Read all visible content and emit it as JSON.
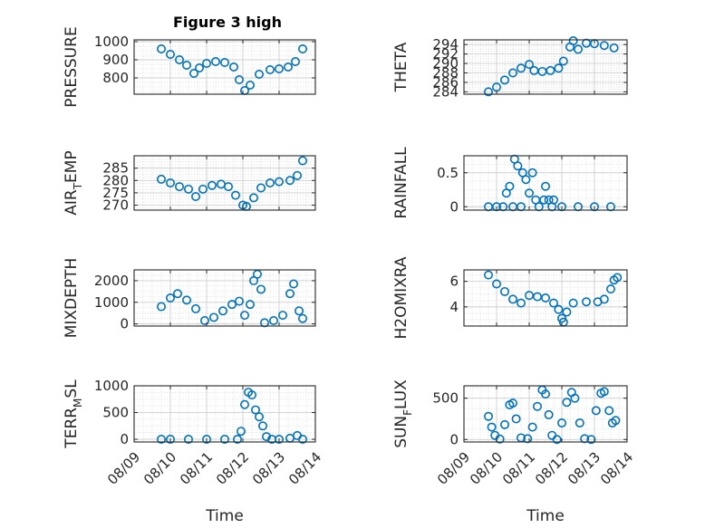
{
  "figure": {
    "title": "Figure 3 high"
  },
  "colors": {
    "marker": "#0072BD",
    "axis": "#262626",
    "grid": "#d9d9d9",
    "background": "#ffffff"
  },
  "chart_data": [
    {
      "type": "scatter",
      "panel": "pressure",
      "title": "Figure 3 high",
      "ylabel": "PRESSURE",
      "ylabel_sub": "",
      "ylabel_rest": "",
      "xlabel": "",
      "xlim": [
        "08/09",
        "08/14"
      ],
      "ylim": [
        710,
        1010
      ],
      "yticks": [
        800,
        900,
        1000
      ],
      "grid": true,
      "minor_grid": true,
      "xticks": [
        "08/09",
        "08/10",
        "08/11",
        "08/12",
        "08/13",
        "08/14"
      ],
      "marker": "circle",
      "points": [
        {
          "x": 9.75,
          "y": 960
        },
        {
          "x": 10.0,
          "y": 930
        },
        {
          "x": 10.25,
          "y": 900
        },
        {
          "x": 10.45,
          "y": 870
        },
        {
          "x": 10.65,
          "y": 825
        },
        {
          "x": 10.8,
          "y": 855
        },
        {
          "x": 11.0,
          "y": 880
        },
        {
          "x": 11.25,
          "y": 890
        },
        {
          "x": 11.5,
          "y": 885
        },
        {
          "x": 11.75,
          "y": 860
        },
        {
          "x": 11.9,
          "y": 790
        },
        {
          "x": 12.05,
          "y": 730
        },
        {
          "x": 12.2,
          "y": 760
        },
        {
          "x": 12.45,
          "y": 820
        },
        {
          "x": 12.75,
          "y": 845
        },
        {
          "x": 13.0,
          "y": 850
        },
        {
          "x": 13.25,
          "y": 860
        },
        {
          "x": 13.45,
          "y": 890
        },
        {
          "x": 13.65,
          "y": 960
        }
      ]
    },
    {
      "type": "scatter",
      "panel": "theta",
      "title": "",
      "ylabel": "THETA",
      "ylabel_sub": "",
      "ylabel_rest": "",
      "xlabel": "",
      "xlim": [
        "08/09",
        "08/14"
      ],
      "ylim": [
        283.5,
        295
      ],
      "yticks": [
        284,
        286,
        288,
        290,
        292,
        294
      ],
      "grid": true,
      "minor_grid": true,
      "xticks": [
        "08/09",
        "08/10",
        "08/11",
        "08/12",
        "08/13",
        "08/14"
      ],
      "marker": "circle",
      "points": [
        {
          "x": 9.75,
          "y": 284
        },
        {
          "x": 10.0,
          "y": 285
        },
        {
          "x": 10.25,
          "y": 286.5
        },
        {
          "x": 10.5,
          "y": 288
        },
        {
          "x": 10.75,
          "y": 289
        },
        {
          "x": 11.0,
          "y": 289.8
        },
        {
          "x": 11.15,
          "y": 288.5
        },
        {
          "x": 11.4,
          "y": 288.3
        },
        {
          "x": 11.65,
          "y": 288.5
        },
        {
          "x": 11.9,
          "y": 289
        },
        {
          "x": 12.05,
          "y": 290.5
        },
        {
          "x": 12.25,
          "y": 293.5
        },
        {
          "x": 12.35,
          "y": 294.8
        },
        {
          "x": 12.5,
          "y": 293
        },
        {
          "x": 12.75,
          "y": 294.3
        },
        {
          "x": 13.0,
          "y": 294.2
        },
        {
          "x": 13.3,
          "y": 293.8
        },
        {
          "x": 13.6,
          "y": 293.3
        }
      ]
    },
    {
      "type": "scatter",
      "panel": "air_temp",
      "title": "",
      "ylabel": "AIR",
      "ylabel_sub": "T",
      "ylabel_rest": "EMP",
      "xlabel": "",
      "xlim": [
        "08/09",
        "08/14"
      ],
      "ylim": [
        268,
        290
      ],
      "yticks": [
        270,
        275,
        280,
        285
      ],
      "grid": true,
      "minor_grid": true,
      "xticks": [
        "08/09",
        "08/10",
        "08/11",
        "08/12",
        "08/13",
        "08/14"
      ],
      "marker": "circle",
      "points": [
        {
          "x": 9.75,
          "y": 280.5
        },
        {
          "x": 10.0,
          "y": 279
        },
        {
          "x": 10.25,
          "y": 277.5
        },
        {
          "x": 10.5,
          "y": 276.5
        },
        {
          "x": 10.7,
          "y": 273.5
        },
        {
          "x": 10.9,
          "y": 276.5
        },
        {
          "x": 11.15,
          "y": 278
        },
        {
          "x": 11.4,
          "y": 278.5
        },
        {
          "x": 11.6,
          "y": 277.5
        },
        {
          "x": 11.8,
          "y": 274
        },
        {
          "x": 12.0,
          "y": 270
        },
        {
          "x": 12.1,
          "y": 269.5
        },
        {
          "x": 12.3,
          "y": 273
        },
        {
          "x": 12.5,
          "y": 277
        },
        {
          "x": 12.75,
          "y": 279
        },
        {
          "x": 13.0,
          "y": 279.5
        },
        {
          "x": 13.3,
          "y": 280
        },
        {
          "x": 13.5,
          "y": 282
        },
        {
          "x": 13.65,
          "y": 288
        }
      ]
    },
    {
      "type": "scatter",
      "panel": "rainfall",
      "title": "",
      "ylabel": "RAINFALL",
      "ylabel_sub": "",
      "ylabel_rest": "",
      "xlabel": "",
      "xlim": [
        "08/09",
        "08/14"
      ],
      "ylim": [
        -0.05,
        0.75
      ],
      "yticks": [
        0,
        0.5
      ],
      "grid": true,
      "minor_grid": true,
      "xticks": [
        "08/09",
        "08/10",
        "08/11",
        "08/12",
        "08/13",
        "08/14"
      ],
      "marker": "circle",
      "points": [
        {
          "x": 9.75,
          "y": 0
        },
        {
          "x": 10.0,
          "y": 0
        },
        {
          "x": 10.2,
          "y": 0
        },
        {
          "x": 10.3,
          "y": 0.2
        },
        {
          "x": 10.4,
          "y": 0.3
        },
        {
          "x": 10.5,
          "y": 0
        },
        {
          "x": 10.55,
          "y": 0.7
        },
        {
          "x": 10.65,
          "y": 0.6
        },
        {
          "x": 10.75,
          "y": 0
        },
        {
          "x": 10.8,
          "y": 0.5
        },
        {
          "x": 10.9,
          "y": 0.4
        },
        {
          "x": 11.0,
          "y": 0.2
        },
        {
          "x": 11.1,
          "y": 0.5
        },
        {
          "x": 11.2,
          "y": 0.1
        },
        {
          "x": 11.3,
          "y": 0
        },
        {
          "x": 11.45,
          "y": 0.1
        },
        {
          "x": 11.5,
          "y": 0.3
        },
        {
          "x": 11.6,
          "y": 0.1
        },
        {
          "x": 11.7,
          "y": 0
        },
        {
          "x": 11.75,
          "y": 0.1
        },
        {
          "x": 12.0,
          "y": 0
        },
        {
          "x": 12.5,
          "y": 0
        },
        {
          "x": 13.0,
          "y": 0
        },
        {
          "x": 13.5,
          "y": 0
        }
      ]
    },
    {
      "type": "scatter",
      "panel": "mixdepth",
      "title": "",
      "ylabel": "MIXDEPTH",
      "ylabel_sub": "",
      "ylabel_rest": "",
      "xlabel": "",
      "xlim": [
        "08/09",
        "08/14"
      ],
      "ylim": [
        -100,
        2500
      ],
      "yticks": [
        0,
        1000,
        2000
      ],
      "grid": true,
      "minor_grid": true,
      "xticks": [
        "08/09",
        "08/10",
        "08/11",
        "08/12",
        "08/13",
        "08/14"
      ],
      "marker": "circle",
      "points": [
        {
          "x": 9.75,
          "y": 800
        },
        {
          "x": 10.0,
          "y": 1200
        },
        {
          "x": 10.2,
          "y": 1400
        },
        {
          "x": 10.45,
          "y": 1100
        },
        {
          "x": 10.7,
          "y": 700
        },
        {
          "x": 10.95,
          "y": 150
        },
        {
          "x": 11.2,
          "y": 300
        },
        {
          "x": 11.45,
          "y": 600
        },
        {
          "x": 11.7,
          "y": 900
        },
        {
          "x": 11.9,
          "y": 1050
        },
        {
          "x": 12.05,
          "y": 400
        },
        {
          "x": 12.2,
          "y": 900
        },
        {
          "x": 12.3,
          "y": 2000
        },
        {
          "x": 12.4,
          "y": 2300
        },
        {
          "x": 12.5,
          "y": 1600
        },
        {
          "x": 12.6,
          "y": 50
        },
        {
          "x": 12.85,
          "y": 150
        },
        {
          "x": 13.1,
          "y": 400
        },
        {
          "x": 13.3,
          "y": 1400
        },
        {
          "x": 13.4,
          "y": 1850
        },
        {
          "x": 13.55,
          "y": 600
        },
        {
          "x": 13.65,
          "y": 250
        }
      ]
    },
    {
      "type": "scatter",
      "panel": "h2omixra",
      "title": "",
      "ylabel": "H2OMIXRA",
      "ylabel_sub": "",
      "ylabel_rest": "",
      "xlabel": "",
      "xlim": [
        "08/09",
        "08/14"
      ],
      "ylim": [
        2.5,
        6.9
      ],
      "yticks": [
        4,
        6
      ],
      "grid": true,
      "minor_grid": true,
      "xticks": [
        "08/09",
        "08/10",
        "08/11",
        "08/12",
        "08/13",
        "08/14"
      ],
      "marker": "circle",
      "points": [
        {
          "x": 9.75,
          "y": 6.5
        },
        {
          "x": 10.0,
          "y": 5.8
        },
        {
          "x": 10.25,
          "y": 5.2
        },
        {
          "x": 10.5,
          "y": 4.6
        },
        {
          "x": 10.75,
          "y": 4.3
        },
        {
          "x": 11.0,
          "y": 4.9
        },
        {
          "x": 11.25,
          "y": 4.8
        },
        {
          "x": 11.5,
          "y": 4.7
        },
        {
          "x": 11.75,
          "y": 4.3
        },
        {
          "x": 11.9,
          "y": 3.8
        },
        {
          "x": 12.0,
          "y": 3.1
        },
        {
          "x": 12.05,
          "y": 2.8
        },
        {
          "x": 12.15,
          "y": 3.6
        },
        {
          "x": 12.35,
          "y": 4.3
        },
        {
          "x": 12.75,
          "y": 4.4
        },
        {
          "x": 13.1,
          "y": 4.4
        },
        {
          "x": 13.3,
          "y": 4.6
        },
        {
          "x": 13.5,
          "y": 5.4
        },
        {
          "x": 13.6,
          "y": 6.1
        },
        {
          "x": 13.7,
          "y": 6.3
        }
      ]
    },
    {
      "type": "scatter",
      "panel": "terr_msl",
      "title": "",
      "ylabel": "TERR",
      "ylabel_sub": "M",
      "ylabel_rest": "SL",
      "xlabel": "Time",
      "xlim": [
        "08/09",
        "08/14"
      ],
      "ylim": [
        -50,
        1000
      ],
      "yticks": [
        0,
        500,
        1000
      ],
      "grid": true,
      "minor_grid": true,
      "xticks": [
        "08/09",
        "08/10",
        "08/11",
        "08/12",
        "08/13",
        "08/14"
      ],
      "marker": "circle",
      "points": [
        {
          "x": 9.75,
          "y": 0
        },
        {
          "x": 10.0,
          "y": 0
        },
        {
          "x": 10.5,
          "y": 0
        },
        {
          "x": 11.0,
          "y": 0
        },
        {
          "x": 11.5,
          "y": 0
        },
        {
          "x": 11.85,
          "y": 0
        },
        {
          "x": 11.95,
          "y": 150
        },
        {
          "x": 12.05,
          "y": 650
        },
        {
          "x": 12.15,
          "y": 880
        },
        {
          "x": 12.25,
          "y": 830
        },
        {
          "x": 12.35,
          "y": 550
        },
        {
          "x": 12.45,
          "y": 420
        },
        {
          "x": 12.55,
          "y": 250
        },
        {
          "x": 12.65,
          "y": 50
        },
        {
          "x": 12.8,
          "y": 0
        },
        {
          "x": 13.0,
          "y": 0
        },
        {
          "x": 13.3,
          "y": 20
        },
        {
          "x": 13.5,
          "y": 70
        },
        {
          "x": 13.65,
          "y": 0
        }
      ]
    },
    {
      "type": "scatter",
      "panel": "sun_flux",
      "title": "",
      "ylabel": "SUN",
      "ylabel_sub": "F",
      "ylabel_rest": "LUX",
      "xlabel": "Time",
      "xlim": [
        "08/09",
        "08/14"
      ],
      "ylim": [
        -30,
        650
      ],
      "yticks": [
        0,
        500
      ],
      "grid": true,
      "minor_grid": true,
      "xticks": [
        "08/09",
        "08/10",
        "08/11",
        "08/12",
        "08/13",
        "08/14"
      ],
      "marker": "circle",
      "points": [
        {
          "x": 9.75,
          "y": 280
        },
        {
          "x": 9.85,
          "y": 150
        },
        {
          "x": 9.95,
          "y": 50
        },
        {
          "x": 10.1,
          "y": 5
        },
        {
          "x": 10.25,
          "y": 180
        },
        {
          "x": 10.4,
          "y": 420
        },
        {
          "x": 10.5,
          "y": 440
        },
        {
          "x": 10.6,
          "y": 250
        },
        {
          "x": 10.75,
          "y": 20
        },
        {
          "x": 10.95,
          "y": 10
        },
        {
          "x": 11.1,
          "y": 150
        },
        {
          "x": 11.25,
          "y": 400
        },
        {
          "x": 11.4,
          "y": 600
        },
        {
          "x": 11.5,
          "y": 550
        },
        {
          "x": 11.6,
          "y": 300
        },
        {
          "x": 11.7,
          "y": 50
        },
        {
          "x": 11.85,
          "y": 0
        },
        {
          "x": 12.0,
          "y": 200
        },
        {
          "x": 12.15,
          "y": 450
        },
        {
          "x": 12.3,
          "y": 570
        },
        {
          "x": 12.4,
          "y": 500
        },
        {
          "x": 12.55,
          "y": 200
        },
        {
          "x": 12.7,
          "y": 10
        },
        {
          "x": 12.9,
          "y": 0
        },
        {
          "x": 13.05,
          "y": 350
        },
        {
          "x": 13.2,
          "y": 560
        },
        {
          "x": 13.3,
          "y": 580
        },
        {
          "x": 13.45,
          "y": 350
        },
        {
          "x": 13.55,
          "y": 200
        },
        {
          "x": 13.65,
          "y": 230
        }
      ]
    }
  ]
}
